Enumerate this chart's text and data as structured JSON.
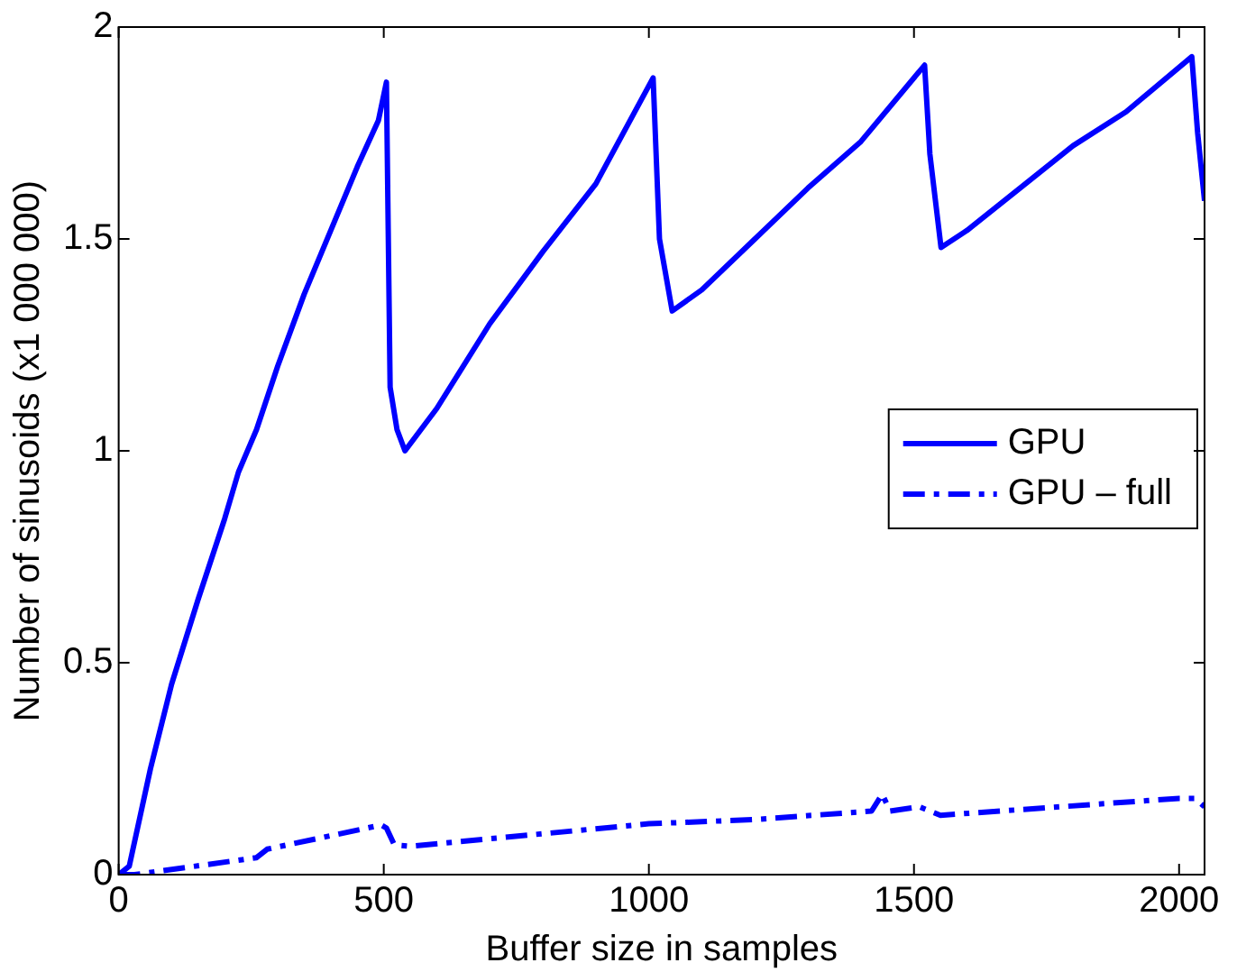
{
  "chart_data": {
    "type": "line",
    "xlabel": "Buffer size in samples",
    "ylabel": "Number of sinusoids (x1 000 000)",
    "xlim": [
      0,
      2048
    ],
    "ylim": [
      0,
      2
    ],
    "xticks": [
      0,
      500,
      1000,
      1500,
      2000
    ],
    "yticks": [
      0,
      0.5,
      1,
      1.5,
      2
    ],
    "grid": false,
    "legend": "right",
    "marker": "none",
    "series": [
      {
        "name": "GPU",
        "color": "#0000ff",
        "line_style": "solid",
        "x": [
          0,
          20,
          60,
          100,
          150,
          200,
          226,
          260,
          300,
          350,
          400,
          450,
          490,
          505,
          512,
          525,
          540,
          600,
          700,
          800,
          900,
          1008,
          1020,
          1044,
          1100,
          1200,
          1300,
          1400,
          1520,
          1530,
          1551,
          1600,
          1700,
          1800,
          1900,
          2024,
          2035,
          2048
        ],
        "values": [
          0,
          0.02,
          0.25,
          0.45,
          0.65,
          0.84,
          0.95,
          1.05,
          1.2,
          1.37,
          1.52,
          1.67,
          1.78,
          1.87,
          1.15,
          1.05,
          1.0,
          1.1,
          1.3,
          1.47,
          1.63,
          1.88,
          1.5,
          1.33,
          1.38,
          1.5,
          1.62,
          1.73,
          1.91,
          1.7,
          1.48,
          1.52,
          1.62,
          1.72,
          1.8,
          1.93,
          1.75,
          1.59
        ]
      },
      {
        "name": "GPU – full",
        "color": "#0000ff",
        "line_style": "dashdot",
        "x": [
          0,
          30,
          260,
          280,
          495,
          505,
          520,
          550,
          1000,
          1200,
          1420,
          1440,
          1455,
          1510,
          1550,
          2000,
          2030,
          2048
        ],
        "values": [
          0,
          0,
          0.04,
          0.06,
          0.117,
          0.11,
          0.07,
          0.067,
          0.12,
          0.13,
          0.15,
          0.19,
          0.15,
          0.16,
          0.14,
          0.18,
          0.18,
          0.16
        ]
      }
    ]
  }
}
